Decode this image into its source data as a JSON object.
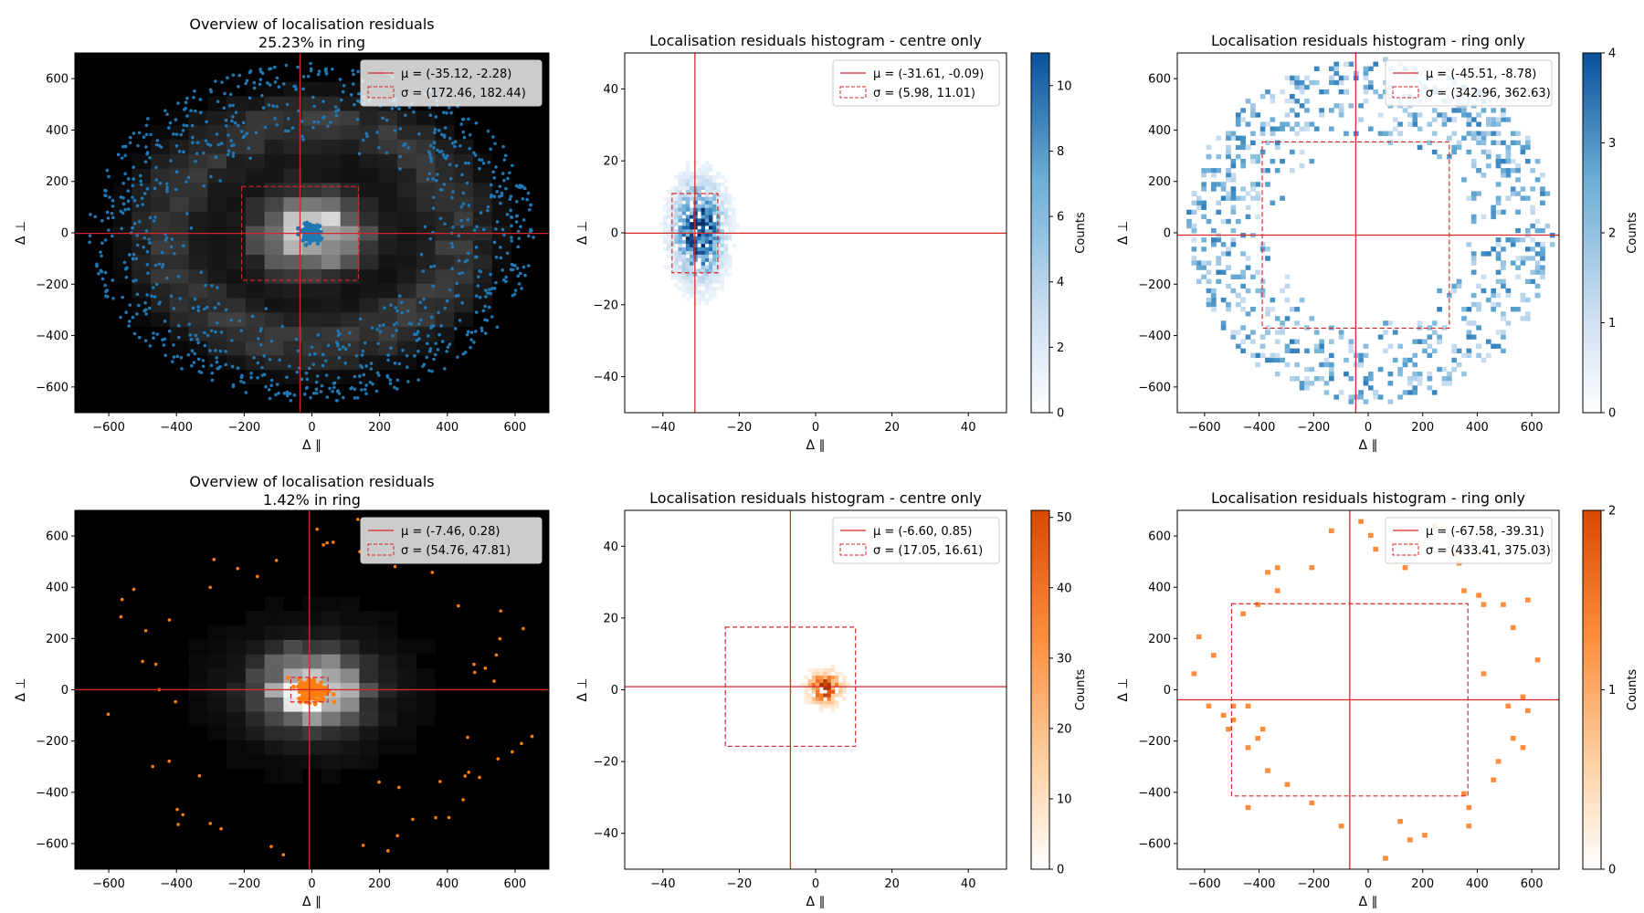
{
  "chart_data": [
    {
      "type": "heatmap",
      "panel": "overview",
      "row": 0,
      "title": "Overview of localisation residuals",
      "subtitle": "25.23% in ring",
      "xlabel": "Δ ∥",
      "ylabel": "Δ ⊥",
      "xlim": [
        -700,
        700
      ],
      "ylim": [
        -700,
        700
      ],
      "xticks": [
        -600,
        -400,
        -200,
        0,
        200,
        400,
        600
      ],
      "yticks": [
        -600,
        -400,
        -200,
        0,
        200,
        400,
        600
      ],
      "background": "#000000",
      "scatter_color": "#1f77b4",
      "ring_radius_range": [
        320,
        660
      ],
      "mean": [
        -35.12,
        -2.28
      ],
      "sigma": [
        172.46,
        182.44
      ],
      "legend": [
        "μ = (-35.12, -2.28)",
        "σ = (172.46, 182.44)"
      ],
      "legend_position": "upper right",
      "grid": false
    },
    {
      "type": "heatmap",
      "panel": "centre",
      "row": 0,
      "title": "Localisation residuals histogram - centre only",
      "xlabel": "Δ ∥",
      "ylabel": "Δ ⊥",
      "xlim": [
        -50,
        50
      ],
      "ylim": [
        -50,
        50
      ],
      "xticks": [
        -40,
        -20,
        0,
        20,
        40
      ],
      "yticks": [
        -40,
        -20,
        0,
        20,
        40
      ],
      "colormap": "Blues",
      "colorbar_label": "Counts",
      "colorbar_range": [
        0,
        11
      ],
      "colorbar_ticks": [
        0,
        2,
        4,
        6,
        8,
        10
      ],
      "mean": [
        -31.61,
        -0.09
      ],
      "sigma": [
        5.98,
        11.01
      ],
      "legend": [
        "μ = (-31.61, -0.09)",
        "σ = (5.98, 11.01)"
      ],
      "legend_position": "upper right",
      "grid": false
    },
    {
      "type": "heatmap",
      "panel": "ring",
      "row": 0,
      "title": "Localisation residuals histogram - ring only",
      "xlabel": "Δ ∥",
      "ylabel": "Δ ⊥",
      "xlim": [
        -700,
        700
      ],
      "ylim": [
        -700,
        700
      ],
      "xticks": [
        -600,
        -400,
        -200,
        0,
        200,
        400,
        600
      ],
      "yticks": [
        -600,
        -400,
        -200,
        0,
        200,
        400,
        600
      ],
      "colormap": "Blues",
      "colorbar_label": "Counts",
      "colorbar_range": [
        0,
        4
      ],
      "colorbar_ticks": [
        0,
        1,
        2,
        3,
        4
      ],
      "ring_radius_range": [
        330,
        670
      ],
      "mean": [
        -45.51,
        -8.78
      ],
      "sigma": [
        342.96,
        362.63
      ],
      "legend": [
        "μ = (-45.51, -8.78)",
        "σ = (342.96, 362.63)"
      ],
      "legend_position": "upper right",
      "grid": false
    },
    {
      "type": "heatmap",
      "panel": "overview",
      "row": 1,
      "title": "Overview of localisation residuals",
      "subtitle": "1.42% in ring",
      "xlabel": "Δ ∥",
      "ylabel": "Δ ⊥",
      "xlim": [
        -700,
        700
      ],
      "ylim": [
        -700,
        700
      ],
      "xticks": [
        -600,
        -400,
        -200,
        0,
        200,
        400,
        600
      ],
      "yticks": [
        -600,
        -400,
        -200,
        0,
        200,
        400,
        600
      ],
      "background": "#000000",
      "scatter_color": "#ff7f0e",
      "ring_radius_range": [
        380,
        680
      ],
      "mean": [
        -7.46,
        0.28
      ],
      "sigma": [
        54.76,
        47.81
      ],
      "legend": [
        "μ = (-7.46, 0.28)",
        "σ = (54.76, 47.81)"
      ],
      "legend_position": "upper right",
      "grid": false
    },
    {
      "type": "heatmap",
      "panel": "centre",
      "row": 1,
      "title": "Localisation residuals histogram - centre only",
      "xlabel": "Δ ∥",
      "ylabel": "Δ ⊥",
      "xlim": [
        -50,
        50
      ],
      "ylim": [
        -50,
        50
      ],
      "xticks": [
        -40,
        -20,
        0,
        20,
        40
      ],
      "yticks": [
        -40,
        -20,
        0,
        20,
        40
      ],
      "colormap": "Oranges",
      "colorbar_label": "Counts",
      "colorbar_range": [
        0,
        51
      ],
      "colorbar_ticks": [
        0,
        10,
        20,
        30,
        40,
        50
      ],
      "mean": [
        -6.6,
        0.85
      ],
      "sigma": [
        17.05,
        16.61
      ],
      "legend": [
        "μ = (-6.60, 0.85)",
        "σ = (17.05, 16.61)"
      ],
      "legend_position": "upper right",
      "grid": false
    },
    {
      "type": "heatmap",
      "panel": "ring",
      "row": 1,
      "title": "Localisation residuals histogram - ring only",
      "xlabel": "Δ ∥",
      "ylabel": "Δ ⊥",
      "xlim": [
        -700,
        700
      ],
      "ylim": [
        -700,
        700
      ],
      "xticks": [
        -600,
        -400,
        -200,
        0,
        200,
        400,
        600
      ],
      "yticks": [
        -600,
        -400,
        -200,
        0,
        200,
        400,
        600
      ],
      "colormap": "Oranges",
      "colorbar_label": "Counts",
      "colorbar_range": [
        0,
        2
      ],
      "colorbar_ticks": [
        0,
        1,
        2
      ],
      "ring_radius_range": [
        380,
        680
      ],
      "mean": [
        -67.58,
        -39.31
      ],
      "sigma": [
        433.41,
        375.03
      ],
      "legend": [
        "μ = (-67.58, -39.31)",
        "σ = (433.41, 375.03)"
      ],
      "legend_position": "upper right",
      "grid": false
    }
  ],
  "colors": {
    "blue_dark": "#08519c",
    "blue_mid": "#6baed6",
    "blue_light": "#deebf7",
    "orange_dark": "#d94801",
    "orange_mid": "#fd8d3c",
    "orange_light": "#fee6ce",
    "mean_line": "#d62728"
  }
}
